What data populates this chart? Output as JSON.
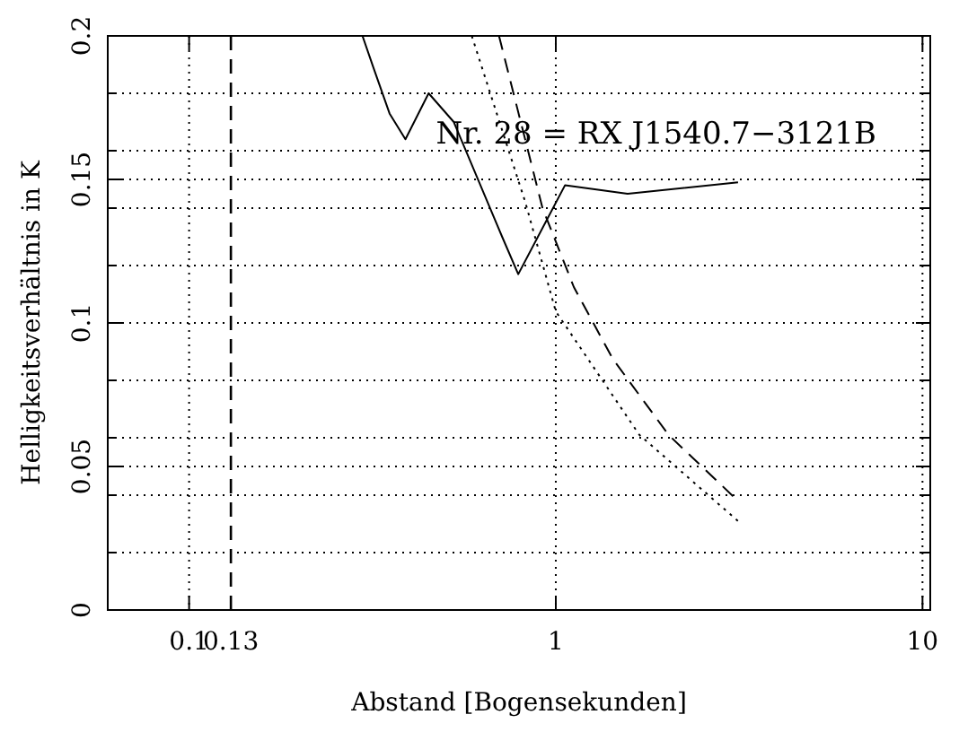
{
  "chart_data": {
    "type": "line",
    "title": "Nr. 28 = RX J1540.7−3121B",
    "xlabel": "Abstand [Bogensekunden]",
    "ylabel": "Helligkeitsverhältnis in K",
    "log": "x",
    "grid": true,
    "marker": "none",
    "xlim": [
      0.06,
      10.5
    ],
    "xticks": [
      0.1,
      0.13,
      1,
      10
    ],
    "ylim": [
      0,
      0.2
    ],
    "yticks": [
      0,
      {
        "value": 0.02,
        "label": null
      },
      {
        "value": 0.04,
        "label": null
      },
      0.05,
      {
        "value": 0.06,
        "label": null
      },
      {
        "value": 0.08,
        "label": null
      },
      0.1,
      {
        "value": 0.12,
        "label": null
      },
      {
        "value": 0.14,
        "label": null
      },
      0.15,
      {
        "value": 0.16,
        "label": null
      },
      {
        "value": 0.18,
        "label": null
      },
      0.2
    ],
    "ref_lines": [
      {
        "axis": "x",
        "value": 0.13,
        "line_style": "dashed",
        "color": "#000000"
      }
    ],
    "series": [
      {
        "color": "#000000",
        "line_style": "solid",
        "x": [
          0.297,
          0.318,
          0.352,
          0.389,
          0.45,
          0.527,
          0.714,
          0.79,
          1.06,
          1.57,
          3.14
        ],
        "values": [
          0.2,
          0.189,
          0.173,
          0.164,
          0.18,
          0.17,
          0.13,
          0.117,
          0.148,
          0.145,
          0.149
        ]
      },
      {
        "color": "#000000",
        "line_style": "dotted",
        "x": [
          0.59,
          0.826,
          1.0,
          1.13,
          1.69,
          3.14
        ],
        "values": [
          0.2,
          0.142,
          0.104,
          0.094,
          0.061,
          0.031
        ]
      },
      {
        "color": "#000000",
        "line_style": "dashed",
        "x": [
          0.7,
          0.92,
          1.12,
          1.43,
          2.03,
          3.14
        ],
        "values": [
          0.2,
          0.14,
          0.1125,
          0.0875,
          0.061,
          0.038
        ]
      }
    ]
  }
}
